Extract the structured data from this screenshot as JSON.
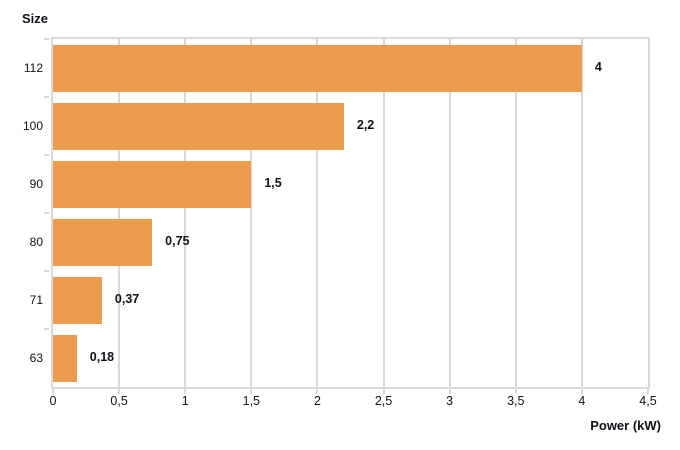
{
  "chart_data": {
    "type": "bar",
    "orientation": "horizontal",
    "title": "Size",
    "xlabel": "Power (kW)",
    "ylabel": "Size",
    "categories": [
      "112",
      "100",
      "90",
      "80",
      "71",
      "63"
    ],
    "values": [
      4,
      2.2,
      1.5,
      0.75,
      0.37,
      0.18
    ],
    "value_labels": [
      "4",
      "2,2",
      "1,5",
      "0,75",
      "0,37",
      "0,18"
    ],
    "x_tick_values": [
      0,
      0.5,
      1,
      1.5,
      2,
      2.5,
      3,
      3.5,
      4,
      4.5
    ],
    "x_tick_labels": [
      "0",
      "0,5",
      "1",
      "1,5",
      "2",
      "2,5",
      "3",
      "3,5",
      "4",
      "4,5"
    ],
    "xlim": [
      0,
      4.5
    ],
    "grid": true,
    "legend": "none",
    "bar_color": "#ed9b4d",
    "grid_color": "#d9d9d9",
    "text_color": "#111118"
  }
}
